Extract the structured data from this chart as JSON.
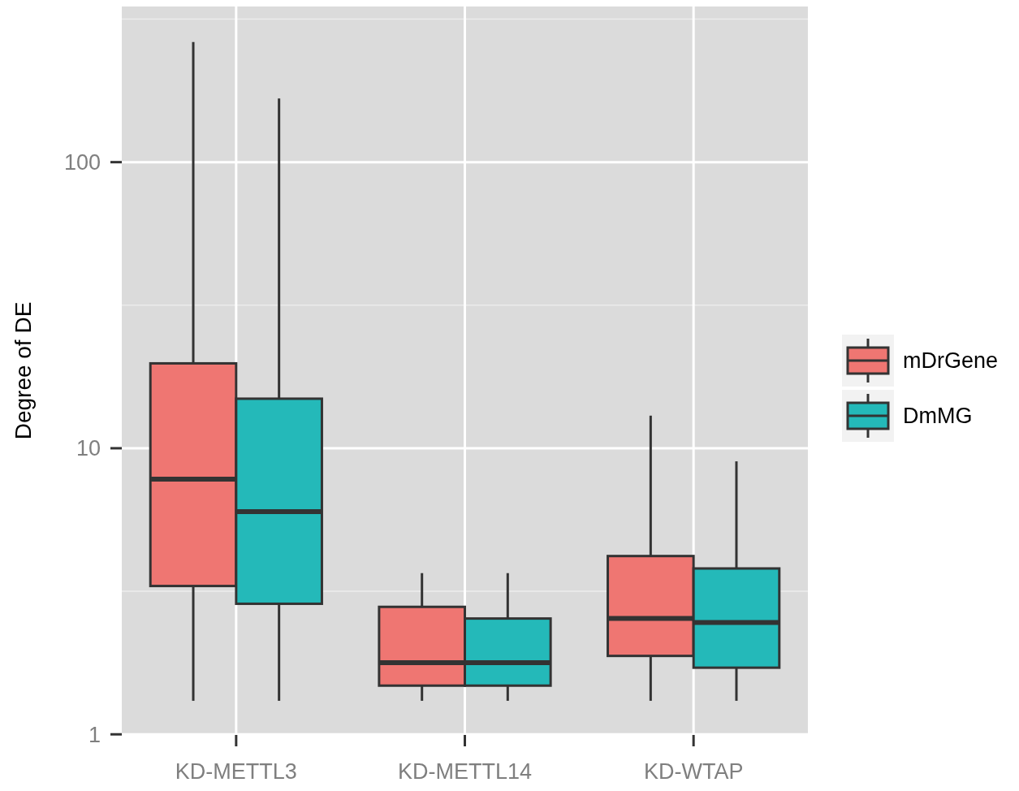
{
  "chart_data": {
    "type": "box",
    "ylabel": "Degree of DE",
    "categories": [
      "KD-METTL3",
      "KD-METTL14",
      "KD-WTAP"
    ],
    "series": [
      {
        "name": "mDrGene",
        "color": "#ef7672",
        "boxes": [
          {
            "low": 1.31,
            "q1": 3.3,
            "median": 7.8,
            "q3": 19.8,
            "high": 263
          },
          {
            "low": 1.31,
            "q1": 1.48,
            "median": 1.78,
            "q3": 2.79,
            "high": 3.66
          },
          {
            "low": 1.31,
            "q1": 1.88,
            "median": 2.54,
            "q3": 4.2,
            "high": 13
          }
        ]
      },
      {
        "name": "DmMG",
        "color": "#24b9b9",
        "boxes": [
          {
            "low": 1.31,
            "q1": 2.86,
            "median": 6,
            "q3": 14.9,
            "high": 167
          },
          {
            "low": 1.31,
            "q1": 1.48,
            "median": 1.78,
            "q3": 2.54,
            "high": 3.66
          },
          {
            "low": 1.31,
            "q1": 1.71,
            "median": 2.46,
            "q3": 3.8,
            "high": 9
          }
        ]
      }
    ],
    "log": "y",
    "ylim": [
      0.995,
      350
    ],
    "yticks": [
      1,
      10,
      100
    ],
    "grid": true,
    "legend": "right"
  }
}
